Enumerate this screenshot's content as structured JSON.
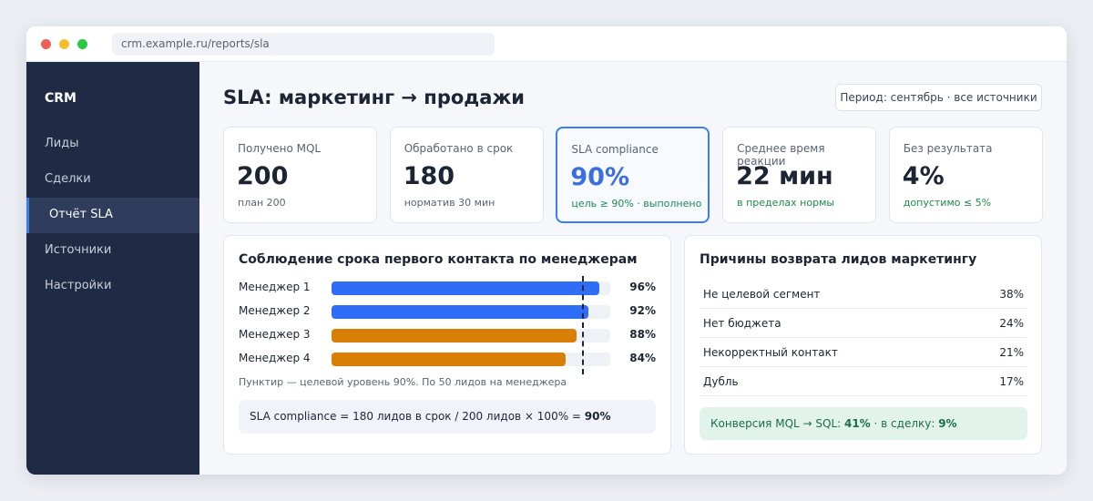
{
  "browser": {
    "url": "crm.example.ru/reports/sla"
  },
  "sidebar": {
    "brand": "CRM",
    "items": [
      "Лиды",
      "Сделки",
      "Отчёт SLA",
      "Источники",
      "Настройки"
    ]
  },
  "header": {
    "title": "SLA: маркетинг → продажи",
    "period": "Период: сентябрь · все источники"
  },
  "kpis": [
    {
      "label": "Получено MQL",
      "value": "200",
      "note": "план 200"
    },
    {
      "label": "Обработано в срок",
      "value": "180",
      "note": "норматив 30 мин"
    },
    {
      "label": "SLA compliance",
      "value": "90%",
      "note": "цель ≥ 90% · выполнено"
    },
    {
      "label": "Среднее время реакции",
      "value": "22 мин",
      "note": "в пределах нормы"
    },
    {
      "label": "Без результата",
      "value": "4%",
      "note": "допустимо ≤ 5%"
    }
  ],
  "manager_chart": {
    "type": "bar",
    "title": "Соблюдение срока первого контакта по менеджерам",
    "categories": [
      "Менеджер 1",
      "Менеджер 2",
      "Менеджер 3",
      "Менеджер 4"
    ],
    "values": [
      96,
      92,
      88,
      84
    ],
    "value_labels": [
      "96%",
      "92%",
      "88%",
      "84%"
    ],
    "colors": [
      "#2f6df6",
      "#2f6df6",
      "#d97f06",
      "#d97f06"
    ],
    "xlim": [
      0,
      100
    ],
    "target": 90,
    "note": "Пунктир — целевой уровень 90%. По 50 лидов на менеджера",
    "formula": "SLA compliance = 180 лидов в срок / 200 лидов × 100% = ",
    "formula_result": "90%"
  },
  "reasons": {
    "title": "Причины возврата лидов маркетингу",
    "rows": [
      [
        "Не целевой сегмент",
        "38%"
      ],
      [
        "Нет бюджета",
        "24%"
      ],
      [
        "Некорректный контакт",
        "21%"
      ],
      [
        "Дубль",
        "17%"
      ]
    ],
    "conversion": [
      "Конверсия MQL → SQL: ",
      "41%",
      " · в сделку: ",
      "9%"
    ]
  }
}
